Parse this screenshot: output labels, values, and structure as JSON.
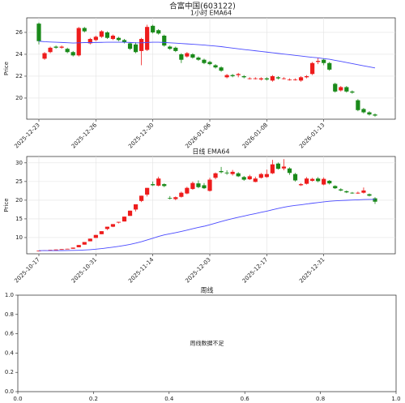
{
  "title": "合富中国(603122)",
  "chart_data": [
    {
      "type": "candlestick",
      "title": "1小时 EMA64",
      "ylabel": "Price",
      "grid": true,
      "up_color": "#ee1c1c",
      "down_color": "#1a8a1a",
      "ema_color": "#4a4aff",
      "ylim": [
        18.07,
        27.33
      ],
      "yticks": [
        20,
        22,
        24,
        26
      ],
      "categories": [
        "2025-12-23",
        null,
        null,
        null,
        null,
        null,
        null,
        null,
        null,
        null,
        "2025-12-26",
        null,
        null,
        null,
        null,
        null,
        null,
        null,
        null,
        null,
        "2025-12-30",
        null,
        null,
        null,
        null,
        null,
        null,
        null,
        null,
        null,
        "2026-01-06",
        null,
        null,
        null,
        null,
        null,
        null,
        null,
        null,
        null,
        "2026-01-08",
        null,
        null,
        null,
        null,
        null,
        null,
        null,
        null,
        null,
        "2026-01-13",
        null,
        null,
        null,
        null,
        null,
        null,
        null,
        null,
        null
      ],
      "ohlc": [
        [
          26.8,
          26.9,
          24.9,
          25.2
        ],
        [
          23.6,
          24.2,
          23.5,
          24.1
        ],
        [
          24.2,
          24.7,
          24.1,
          24.6
        ],
        [
          24.7,
          24.8,
          24.5,
          24.6
        ],
        [
          24.6,
          24.8,
          24.5,
          24.7
        ],
        [
          24.5,
          24.6,
          24.1,
          24.2
        ],
        [
          24.2,
          24.3,
          23.8,
          23.9
        ],
        [
          23.9,
          26.5,
          23.8,
          26.4
        ],
        [
          26.4,
          26.5,
          26.0,
          26.1
        ],
        [
          25.0,
          25.5,
          24.9,
          25.4
        ],
        [
          25.3,
          25.7,
          25.2,
          25.6
        ],
        [
          25.6,
          26.2,
          25.5,
          26.1
        ],
        [
          26.0,
          26.1,
          25.4,
          25.5
        ],
        [
          25.4,
          25.8,
          25.3,
          25.7
        ],
        [
          25.5,
          25.6,
          25.2,
          25.3
        ],
        [
          25.3,
          25.4,
          25.0,
          25.1
        ],
        [
          25.0,
          25.1,
          24.4,
          24.5
        ],
        [
          24.9,
          25.1,
          24.1,
          24.2
        ],
        [
          24.3,
          25.5,
          23.0,
          25.4
        ],
        [
          24.4,
          26.7,
          24.3,
          26.5
        ],
        [
          26.6,
          26.7,
          25.9,
          26.0
        ],
        [
          26.2,
          26.3,
          25.8,
          25.9
        ],
        [
          25.7,
          25.8,
          24.7,
          24.8
        ],
        [
          24.7,
          24.8,
          24.4,
          24.5
        ],
        [
          24.6,
          24.7,
          24.2,
          24.3
        ],
        [
          24.0,
          24.1,
          23.2,
          23.5
        ],
        [
          23.8,
          24.2,
          23.7,
          24.1
        ],
        [
          24.0,
          24.1,
          23.6,
          23.7
        ],
        [
          23.7,
          23.8,
          23.4,
          23.5
        ],
        [
          23.5,
          23.6,
          23.1,
          23.2
        ],
        [
          23.3,
          23.4,
          23.0,
          23.1
        ],
        [
          23.0,
          23.1,
          22.7,
          22.8
        ],
        [
          22.8,
          22.9,
          22.4,
          22.5
        ],
        [
          21.9,
          22.2,
          21.8,
          22.1
        ],
        [
          22.1,
          22.2,
          21.9,
          22.0
        ],
        [
          22.1,
          22.3,
          21.9,
          22.2
        ],
        [
          22.0,
          22.1,
          21.8,
          21.9
        ],
        [
          21.8,
          21.9,
          21.7,
          21.8
        ],
        [
          21.8,
          21.9,
          21.7,
          21.8
        ],
        [
          21.7,
          21.9,
          21.6,
          21.8
        ],
        [
          21.8,
          21.9,
          21.6,
          21.7
        ],
        [
          21.6,
          22.1,
          21.5,
          22.0
        ],
        [
          21.9,
          22.0,
          21.7,
          21.8
        ],
        [
          21.8,
          21.9,
          21.7,
          21.8
        ],
        [
          21.7,
          21.8,
          21.6,
          21.7
        ],
        [
          21.7,
          21.8,
          21.6,
          21.7
        ],
        [
          21.6,
          22.0,
          21.5,
          21.9
        ],
        [
          21.9,
          22.1,
          21.8,
          22.0
        ],
        [
          22.2,
          23.3,
          22.1,
          23.2
        ],
        [
          23.3,
          23.7,
          23.1,
          23.4
        ],
        [
          23.5,
          23.6,
          23.0,
          23.2
        ],
        [
          23.2,
          23.3,
          22.5,
          22.6
        ],
        [
          21.3,
          21.4,
          20.5,
          20.6
        ],
        [
          20.7,
          21.1,
          20.6,
          21.0
        ],
        [
          21.0,
          21.1,
          20.5,
          20.6
        ],
        [
          20.6,
          20.7,
          20.4,
          20.5
        ],
        [
          19.8,
          19.9,
          18.8,
          18.9
        ],
        [
          19.0,
          19.1,
          18.6,
          18.7
        ],
        [
          18.7,
          18.8,
          18.4,
          18.5
        ],
        [
          18.5,
          18.6,
          18.3,
          18.4
        ]
      ],
      "ema": [
        25.2,
        25.15,
        25.12,
        25.1,
        25.08,
        25.06,
        25.03,
        25.05,
        25.07,
        25.07,
        25.08,
        25.09,
        25.1,
        25.1,
        25.1,
        25.1,
        25.08,
        25.05,
        25.05,
        25.08,
        25.1,
        25.1,
        25.08,
        25.05,
        25.02,
        24.98,
        24.95,
        24.92,
        24.88,
        24.84,
        24.8,
        24.75,
        24.7,
        24.63,
        24.57,
        24.5,
        24.44,
        24.38,
        24.32,
        24.26,
        24.2,
        24.14,
        24.08,
        24.02,
        23.96,
        23.9,
        23.84,
        23.78,
        23.72,
        23.68,
        23.6,
        23.55,
        23.45,
        23.35,
        23.25,
        23.15,
        23.05,
        22.95,
        22.85,
        22.75
      ]
    },
    {
      "type": "candlestick",
      "title": "日线 EMA64",
      "ylabel": "Price",
      "grid": true,
      "up_color": "#ee1c1c",
      "down_color": "#1a8a1a",
      "ema_color": "#4a4aff",
      "ylim": [
        5.65,
        31.7
      ],
      "yticks": [
        10,
        15,
        20,
        25,
        30
      ],
      "categories": [
        "2025-10-17",
        null,
        null,
        null,
        null,
        null,
        null,
        null,
        null,
        null,
        "2025-10-31",
        null,
        null,
        null,
        null,
        null,
        null,
        null,
        null,
        null,
        "2025-11-14",
        null,
        null,
        null,
        null,
        null,
        null,
        null,
        null,
        null,
        "2025-12-03",
        null,
        null,
        null,
        null,
        null,
        null,
        null,
        null,
        null,
        "2025-12-17",
        null,
        null,
        null,
        null,
        null,
        null,
        null,
        null,
        null,
        "2025-12-31",
        null,
        null,
        null,
        null,
        null,
        null,
        null,
        null,
        null
      ],
      "ohlc": [
        [
          6.4,
          6.5,
          6.4,
          6.5
        ],
        [
          6.5,
          6.6,
          6.5,
          6.6
        ],
        [
          6.6,
          6.7,
          6.6,
          6.7
        ],
        [
          6.7,
          6.8,
          6.7,
          6.8
        ],
        [
          6.8,
          6.9,
          6.8,
          6.9
        ],
        [
          6.9,
          7.0,
          6.9,
          7.0
        ],
        [
          7.0,
          7.3,
          7.0,
          7.3
        ],
        [
          7.4,
          8.0,
          7.4,
          8.0
        ],
        [
          8.1,
          8.8,
          8.1,
          8.8
        ],
        [
          9.0,
          9.7,
          9.0,
          9.7
        ],
        [
          9.9,
          10.7,
          9.9,
          10.7
        ],
        [
          10.9,
          11.7,
          10.9,
          11.7
        ],
        [
          12.3,
          12.9,
          12.0,
          12.9
        ],
        [
          12.9,
          13.6,
          12.8,
          13.6
        ],
        [
          14.0,
          14.2,
          13.8,
          14.2
        ],
        [
          14.3,
          15.6,
          14.3,
          15.6
        ],
        [
          15.8,
          17.2,
          15.8,
          17.2
        ],
        [
          17.5,
          18.9,
          17.0,
          18.9
        ],
        [
          19.8,
          21.2,
          19.5,
          21.2
        ],
        [
          21.5,
          23.3,
          21.0,
          23.3
        ],
        [
          24.3,
          25.0,
          23.8,
          24.0
        ],
        [
          23.9,
          26.3,
          23.7,
          25.8
        ],
        [
          24.3,
          24.5,
          23.5,
          23.8
        ],
        [
          20.6,
          21.1,
          20.2,
          20.5
        ],
        [
          20.3,
          21.0,
          20.0,
          20.8
        ],
        [
          20.9,
          22.3,
          20.7,
          22.0
        ],
        [
          21.8,
          23.6,
          21.6,
          23.3
        ],
        [
          23.0,
          25.0,
          22.8,
          24.6
        ],
        [
          24.5,
          25.3,
          23.2,
          23.5
        ],
        [
          24.0,
          24.6,
          23.0,
          23.2
        ],
        [
          22.5,
          26.0,
          22.3,
          25.5
        ],
        [
          26.0,
          27.4,
          25.6,
          27.2
        ],
        [
          27.8,
          28.9,
          27.2,
          27.5
        ],
        [
          27.4,
          28.0,
          26.8,
          27.2
        ],
        [
          27.0,
          28.1,
          26.6,
          27.6
        ],
        [
          27.2,
          27.5,
          26.2,
          26.4
        ],
        [
          26.2,
          26.5,
          25.2,
          25.5
        ],
        [
          25.6,
          26.8,
          25.4,
          26.4
        ],
        [
          24.9,
          26.3,
          24.8,
          25.8
        ],
        [
          26.0,
          27.3,
          25.8,
          27.0
        ],
        [
          26.2,
          28.2,
          26.0,
          27.0
        ],
        [
          27.2,
          30.8,
          27.0,
          29.6
        ],
        [
          29.8,
          30.1,
          28.2,
          28.4
        ],
        [
          28.5,
          31.0,
          28.0,
          29.0
        ],
        [
          28.5,
          28.8,
          26.8,
          27.3
        ],
        [
          27.0,
          27.3,
          25.0,
          25.3
        ],
        [
          24.0,
          24.6,
          23.8,
          24.3
        ],
        [
          24.4,
          26.2,
          24.2,
          25.8
        ],
        [
          25.2,
          26.0,
          25.0,
          25.7
        ],
        [
          25.8,
          26.2,
          24.8,
          25.1
        ],
        [
          24.2,
          26.1,
          24.0,
          25.7
        ],
        [
          25.2,
          25.4,
          24.2,
          24.5
        ],
        [
          23.8,
          24.0,
          23.0,
          23.2
        ],
        [
          22.9,
          23.2,
          22.4,
          22.6
        ],
        [
          22.4,
          22.6,
          21.9,
          22.1
        ],
        [
          22.0,
          22.2,
          21.7,
          21.9
        ],
        [
          21.8,
          22.3,
          21.7,
          22.0
        ],
        [
          22.0,
          23.4,
          21.8,
          22.6
        ],
        [
          21.6,
          21.8,
          21.0,
          21.2
        ],
        [
          20.5,
          20.8,
          19.0,
          19.6
        ]
      ],
      "ema": [
        6.5,
        6.5,
        6.5,
        6.51,
        6.52,
        6.53,
        6.55,
        6.59,
        6.66,
        6.76,
        6.89,
        7.04,
        7.23,
        7.43,
        7.64,
        7.89,
        8.17,
        8.5,
        8.9,
        9.35,
        9.81,
        10.3,
        10.72,
        11.02,
        11.32,
        11.64,
        11.99,
        12.37,
        12.72,
        13.03,
        13.42,
        13.86,
        14.3,
        14.7,
        15.08,
        15.44,
        15.77,
        16.11,
        16.42,
        16.75,
        17.06,
        17.44,
        17.78,
        18.13,
        18.4,
        18.6,
        18.78,
        18.99,
        19.19,
        19.37,
        19.56,
        19.71,
        19.82,
        19.91,
        19.98,
        20.04,
        20.1,
        20.18,
        20.21,
        20.2
      ]
    },
    {
      "type": "empty",
      "title": "周线",
      "annotation": "周线数据不足",
      "xlim": [
        0,
        1
      ],
      "ylim": [
        0,
        1
      ],
      "xticks": [
        {
          "value": 0,
          "label": "0.0"
        },
        {
          "value": 0.2,
          "label": "0.2"
        },
        {
          "value": 0.4,
          "label": "0.4"
        },
        {
          "value": 0.6,
          "label": "0.6"
        },
        {
          "value": 0.8,
          "label": "0.8"
        },
        {
          "value": 1,
          "label": "1.0"
        }
      ],
      "yticks": [
        {
          "value": 0,
          "label": "0.0"
        },
        {
          "value": 0.2,
          "label": "0.2"
        },
        {
          "value": 0.4,
          "label": "0.4"
        },
        {
          "value": 0.6,
          "label": "0.6"
        },
        {
          "value": 0.8,
          "label": "0.8"
        },
        {
          "value": 1,
          "label": "1.0"
        }
      ]
    }
  ]
}
